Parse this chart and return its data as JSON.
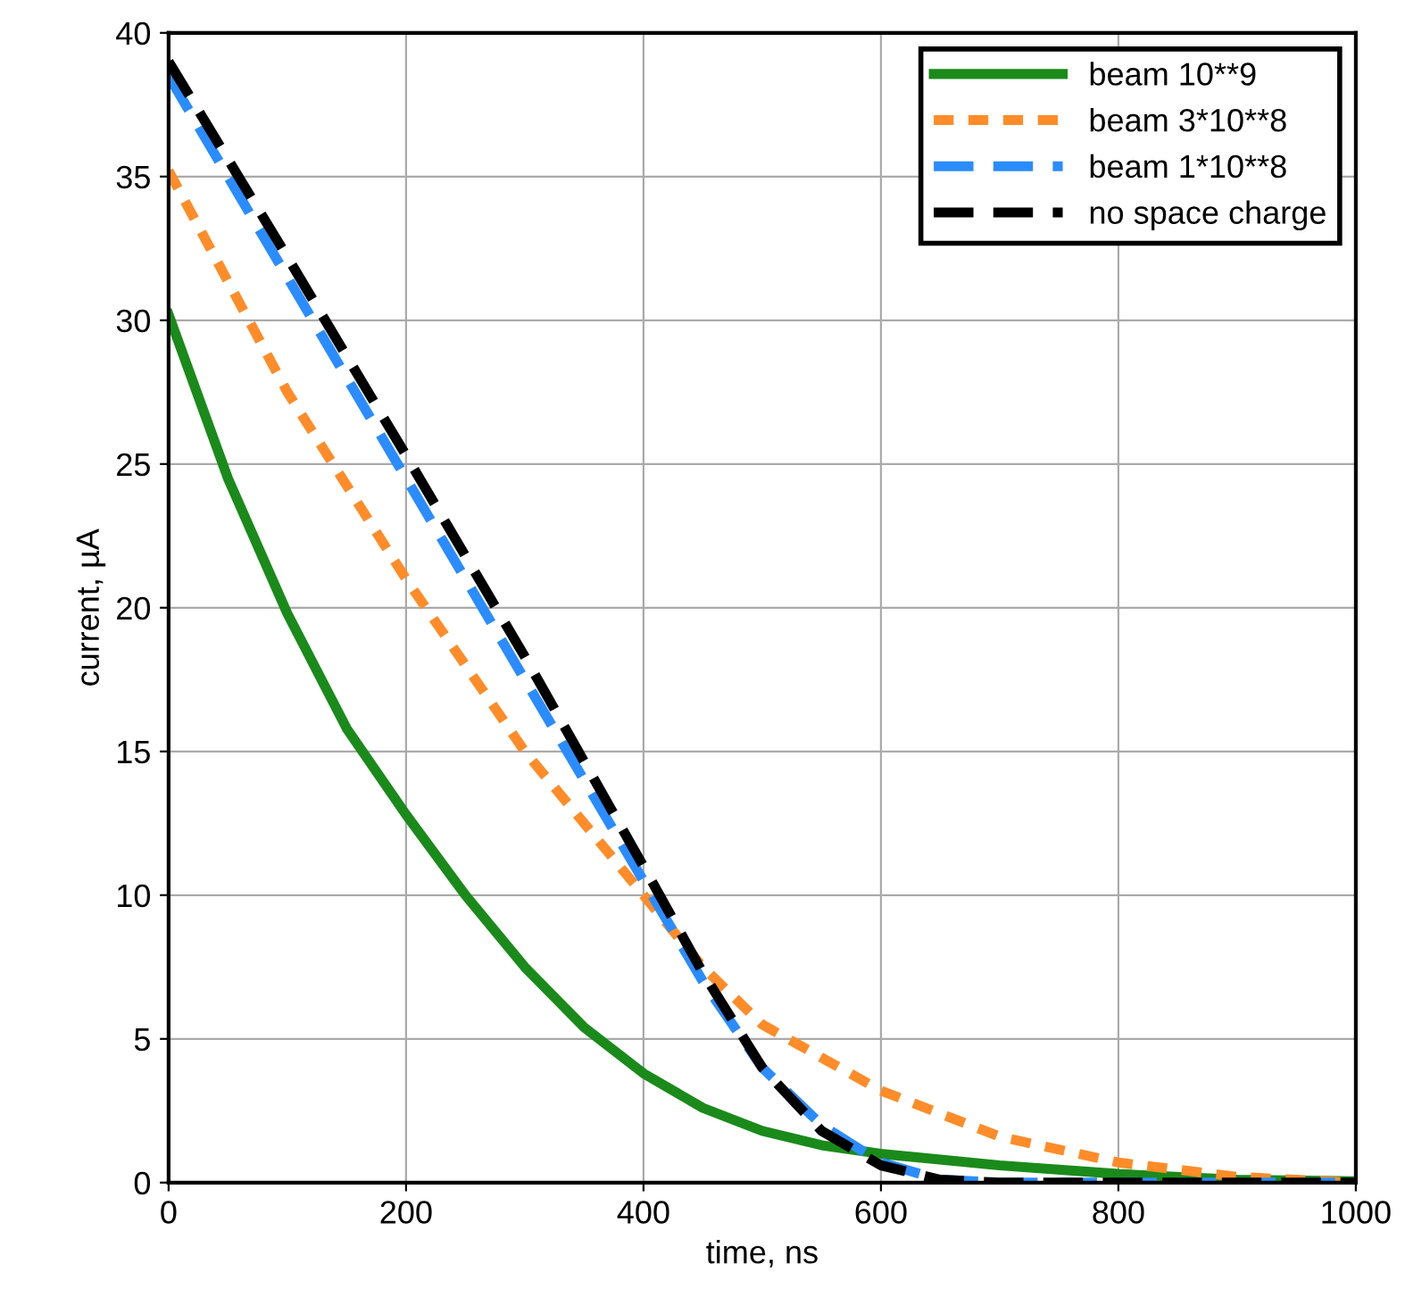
{
  "chart_data": {
    "type": "line",
    "xlabel": "time, ns",
    "ylabel": "current, µA",
    "xlim": [
      0,
      1000
    ],
    "ylim": [
      0,
      40
    ],
    "xticks": [
      0,
      200,
      400,
      600,
      800,
      1000
    ],
    "yticks": [
      0,
      5,
      10,
      15,
      20,
      25,
      30,
      35,
      40
    ],
    "grid": true,
    "legend": "top right",
    "series": [
      {
        "name": "beam 10**9",
        "color": "#1a8a1a",
        "line_style": "solid",
        "x": [
          0,
          50,
          100,
          150,
          200,
          250,
          300,
          350,
          400,
          450,
          500,
          550,
          600,
          700,
          800,
          900,
          1000
        ],
        "values": [
          30.2,
          24.5,
          19.8,
          15.8,
          12.8,
          10.0,
          7.5,
          5.4,
          3.8,
          2.6,
          1.8,
          1.3,
          1.0,
          0.6,
          0.3,
          0.1,
          0.05
        ]
      },
      {
        "name": "beam 3*10**8",
        "color": "#ff8c28",
        "line_style": "dotted",
        "x": [
          0,
          100,
          200,
          300,
          400,
          450,
          500,
          600,
          700,
          800,
          900,
          1000
        ],
        "values": [
          35.2,
          27.5,
          21,
          15,
          10,
          7.5,
          5.5,
          3.2,
          1.6,
          0.7,
          0.2,
          0
        ]
      },
      {
        "name": "beam 1*10**8",
        "color": "#2a8cff",
        "line_style": "dashed",
        "x": [
          0,
          100,
          200,
          300,
          400,
          450,
          500,
          550,
          600,
          650,
          700,
          1000
        ],
        "values": [
          38.5,
          31.5,
          24.5,
          17.5,
          10.5,
          7,
          4,
          2,
          0.7,
          0.1,
          0,
          0
        ]
      },
      {
        "name": "no space charge",
        "color": "#000000",
        "line_style": "dashed",
        "x": [
          0,
          100,
          200,
          300,
          400,
          450,
          500,
          550,
          600,
          650,
          700,
          1000
        ],
        "values": [
          39,
          32.2,
          25.3,
          18.3,
          11,
          7.3,
          4,
          1.8,
          0.6,
          0.1,
          0,
          0
        ]
      }
    ]
  }
}
